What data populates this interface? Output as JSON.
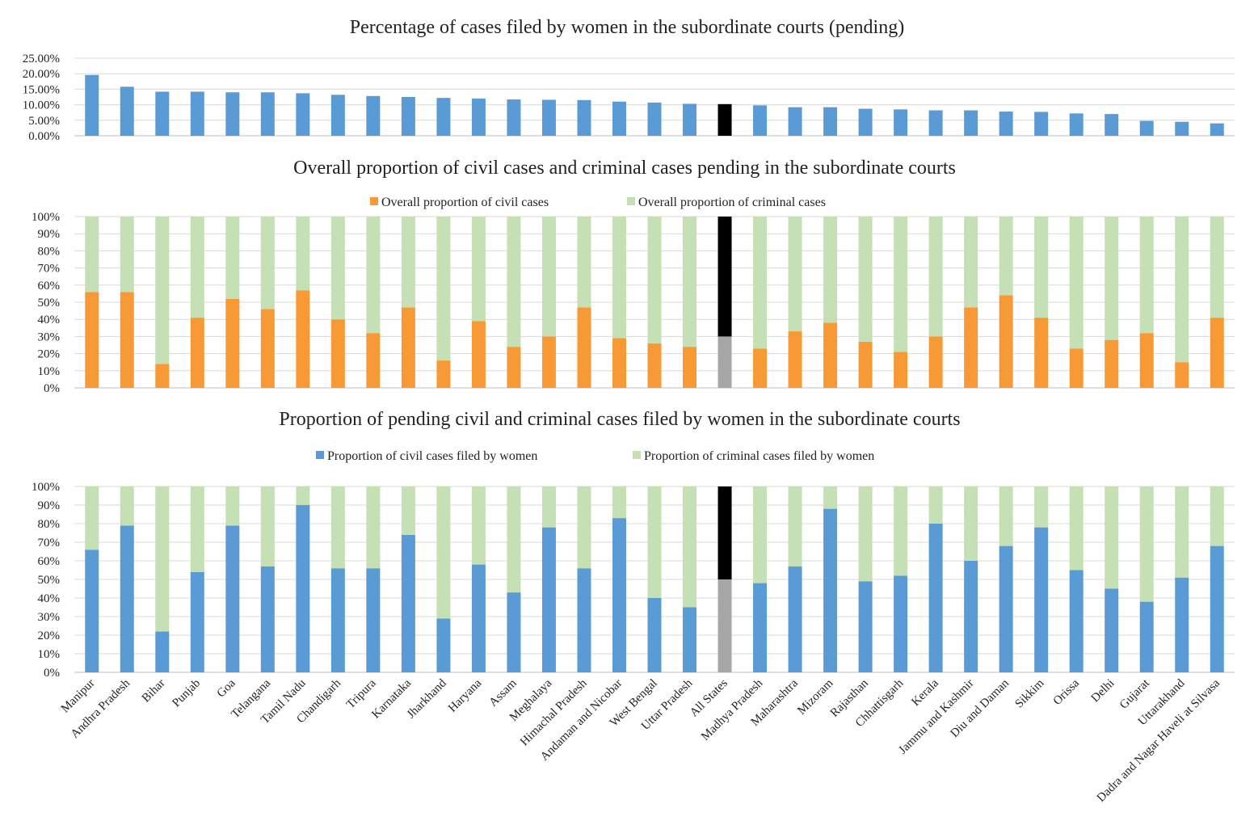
{
  "categories": [
    "Manipur",
    "Andhra Pradesh",
    "Bihar",
    "Punjab",
    "Goa",
    "Telangana",
    "Tamil Nadu",
    "Chandigarh",
    "Tripura",
    "Karnataka",
    "Jharkhand",
    "Haryana",
    "Assam",
    "Meghalaya",
    "Himachal Pradesh",
    "Andaman and Nicobar",
    "West Bengal",
    "Uttar Pradesh",
    "All States",
    "Madhya Pradesh",
    "Maharashtra",
    "Mizoram",
    "Rajasthan",
    "Chhattisgarh",
    "Kerala",
    "Jammu and Kashmir",
    "Diu and Daman",
    "Sikkim",
    "Orissa",
    "Delhi",
    "Gujarat",
    "Uttarakhand",
    "Dadra and Nagar Haveli at Silvasa"
  ],
  "highlight_category": "All States",
  "colors": {
    "blue": "#5b9bd5",
    "orange": "#f79a36",
    "green": "#c5e0b4",
    "highlight_top": "#000000",
    "highlight_bottom": "#a6a6a6"
  },
  "chart_data": [
    {
      "type": "bar",
      "title": "Percentage of cases filed by women in the subordinate courts (pending)",
      "ylim": [
        0,
        25
      ],
      "yticks": [
        "0.00%",
        "5.00%",
        "10.00%",
        "15.00%",
        "20.00%",
        "25.00%"
      ],
      "grid": true,
      "series": [
        {
          "values": [
            19.6,
            15.8,
            14.2,
            14.2,
            14.0,
            14.0,
            13.7,
            13.2,
            12.8,
            12.5,
            12.2,
            12.0,
            11.7,
            11.6,
            11.5,
            11.0,
            10.7,
            10.3,
            10.2,
            9.8,
            9.2,
            9.2,
            8.7,
            8.5,
            8.2,
            8.2,
            7.8,
            7.7,
            7.2,
            7.0,
            4.8,
            4.5,
            4.0
          ]
        }
      ]
    },
    {
      "type": "bar",
      "stacked": true,
      "title": "Overall proportion of  civil cases and criminal cases pending in the subordinate courts",
      "ylim": [
        0,
        100
      ],
      "yticks": [
        "0%",
        "10%",
        "20%",
        "30%",
        "40%",
        "50%",
        "60%",
        "70%",
        "80%",
        "90%",
        "100%"
      ],
      "legend_position": "top",
      "grid": true,
      "series": [
        {
          "name": "Overall proportion of civil cases",
          "values": [
            56,
            56,
            14,
            41,
            52,
            46,
            57,
            40,
            32,
            47,
            16,
            39,
            24,
            30,
            47,
            29,
            26,
            24,
            30,
            23,
            33,
            38,
            27,
            21,
            30,
            47,
            54,
            41,
            23,
            28,
            32,
            15,
            41
          ]
        },
        {
          "name": "Overall proportion of criminal cases",
          "values": [
            44,
            44,
            86,
            59,
            48,
            54,
            43,
            60,
            68,
            53,
            84,
            61,
            76,
            70,
            53,
            71,
            74,
            76,
            70,
            77,
            67,
            62,
            73,
            79,
            70,
            53,
            46,
            59,
            77,
            72,
            68,
            85,
            59
          ]
        }
      ]
    },
    {
      "type": "bar",
      "stacked": true,
      "title": "Proportion of  pending civil and criminal cases filed by women in the subordinate courts",
      "ylim": [
        0,
        100
      ],
      "yticks": [
        "0%",
        "10%",
        "20%",
        "30%",
        "40%",
        "50%",
        "60%",
        "70%",
        "80%",
        "90%",
        "100%"
      ],
      "legend_position": "top",
      "grid": true,
      "series": [
        {
          "name": "Proportion of civil cases filed by women",
          "values": [
            66,
            79,
            22,
            54,
            79,
            57,
            90,
            56,
            56,
            74,
            29,
            58,
            43,
            78,
            56,
            83,
            40,
            35,
            50,
            48,
            57,
            88,
            49,
            52,
            80,
            60,
            68,
            78,
            55,
            45,
            38,
            51,
            68
          ]
        },
        {
          "name": "Proportion of criminal cases filed by women",
          "values": [
            34,
            21,
            78,
            46,
            21,
            43,
            10,
            44,
            44,
            26,
            71,
            42,
            57,
            22,
            44,
            17,
            60,
            65,
            50,
            52,
            43,
            12,
            51,
            48,
            20,
            40,
            32,
            22,
            45,
            55,
            62,
            49,
            32
          ]
        }
      ]
    }
  ]
}
